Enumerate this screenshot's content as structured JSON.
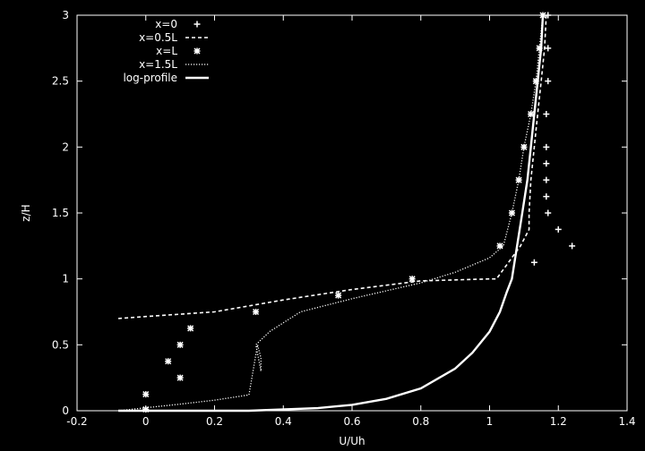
{
  "chart_data": {
    "type": "line",
    "xlabel": "U/Uh",
    "ylabel": "z/H",
    "xlim": [
      -0.2,
      1.4
    ],
    "ylim": [
      0,
      3
    ],
    "x_ticks": [
      "-0.2",
      "0",
      "0.2",
      "0.4",
      "0.6",
      "0.8",
      "1",
      "1.2",
      "1.4"
    ],
    "y_ticks": [
      "0",
      "0.5",
      "1",
      "1.5",
      "2",
      "2.5",
      "3"
    ],
    "grid": false,
    "legend_position": "top-left",
    "series": [
      {
        "name": "x=0",
        "style": "points-plus",
        "points": [
          [
            1.13,
            1.125
          ],
          [
            1.24,
            1.25
          ],
          [
            1.2,
            1.375
          ],
          [
            1.17,
            1.5
          ],
          [
            1.165,
            1.625
          ],
          [
            1.165,
            1.75
          ],
          [
            1.165,
            1.875
          ],
          [
            1.165,
            2.0
          ],
          [
            1.165,
            2.25
          ],
          [
            1.17,
            2.5
          ],
          [
            1.17,
            2.75
          ],
          [
            1.17,
            3.0
          ]
        ]
      },
      {
        "name": "x=0.5L",
        "style": "dashed",
        "points": [
          [
            -0.08,
            0.7
          ],
          [
            0.0,
            0.715
          ],
          [
            0.2,
            0.75
          ],
          [
            0.4,
            0.84
          ],
          [
            0.6,
            0.92
          ],
          [
            0.8,
            0.985
          ],
          [
            1.0,
            1.0
          ],
          [
            1.02,
            1.0
          ],
          [
            1.055,
            1.125
          ],
          [
            1.09,
            1.25
          ],
          [
            1.115,
            1.375
          ],
          [
            1.115,
            1.5
          ],
          [
            1.12,
            1.75
          ],
          [
            1.13,
            2.0
          ],
          [
            1.14,
            2.25
          ],
          [
            1.15,
            2.5
          ],
          [
            1.16,
            2.75
          ],
          [
            1.165,
            3.0
          ]
        ]
      },
      {
        "name": "x=L",
        "style": "points-star",
        "points": [
          [
            0.0,
            0.01
          ],
          [
            0.0,
            0.125
          ],
          [
            0.1,
            0.25
          ],
          [
            0.065,
            0.375
          ],
          [
            0.1,
            0.5
          ],
          [
            0.13,
            0.625
          ],
          [
            0.32,
            0.75
          ],
          [
            0.56,
            0.875
          ],
          [
            0.775,
            1.0
          ],
          [
            1.03,
            1.25
          ],
          [
            1.065,
            1.5
          ],
          [
            1.085,
            1.75
          ],
          [
            1.1,
            2.0
          ],
          [
            1.12,
            2.25
          ],
          [
            1.135,
            2.5
          ],
          [
            1.145,
            2.75
          ],
          [
            1.155,
            3.0
          ]
        ]
      },
      {
        "name": "x=1.5L",
        "style": "dotted",
        "points": [
          [
            -0.08,
            0.0
          ],
          [
            0.1,
            0.05
          ],
          [
            0.2,
            0.08
          ],
          [
            0.3,
            0.12
          ],
          [
            0.325,
            0.5
          ],
          [
            0.335,
            0.4
          ],
          [
            0.335,
            0.3
          ],
          [
            0.32,
            0.5
          ],
          [
            0.36,
            0.6
          ],
          [
            0.45,
            0.75
          ],
          [
            0.6,
            0.85
          ],
          [
            0.8,
            0.97
          ],
          [
            0.9,
            1.05
          ],
          [
            1.0,
            1.16
          ],
          [
            1.04,
            1.25
          ],
          [
            1.065,
            1.5
          ],
          [
            1.085,
            1.75
          ],
          [
            1.1,
            2.0
          ],
          [
            1.12,
            2.25
          ],
          [
            1.135,
            2.5
          ],
          [
            1.145,
            2.75
          ],
          [
            1.155,
            3.0
          ]
        ]
      },
      {
        "name": "log-profile",
        "style": "solid",
        "points": [
          [
            -0.08,
            0.0
          ],
          [
            0.3,
            0.0
          ],
          [
            0.5,
            0.02
          ],
          [
            0.6,
            0.045
          ],
          [
            0.7,
            0.09
          ],
          [
            0.8,
            0.17
          ],
          [
            0.9,
            0.32
          ],
          [
            0.95,
            0.44
          ],
          [
            1.0,
            0.6
          ],
          [
            1.03,
            0.75
          ],
          [
            1.05,
            0.9
          ],
          [
            1.065,
            1.0
          ],
          [
            1.08,
            1.25
          ],
          [
            1.095,
            1.5
          ],
          [
            1.11,
            1.75
          ],
          [
            1.12,
            2.0
          ],
          [
            1.13,
            2.25
          ],
          [
            1.14,
            2.5
          ],
          [
            1.15,
            2.75
          ],
          [
            1.155,
            3.0
          ]
        ]
      }
    ]
  }
}
